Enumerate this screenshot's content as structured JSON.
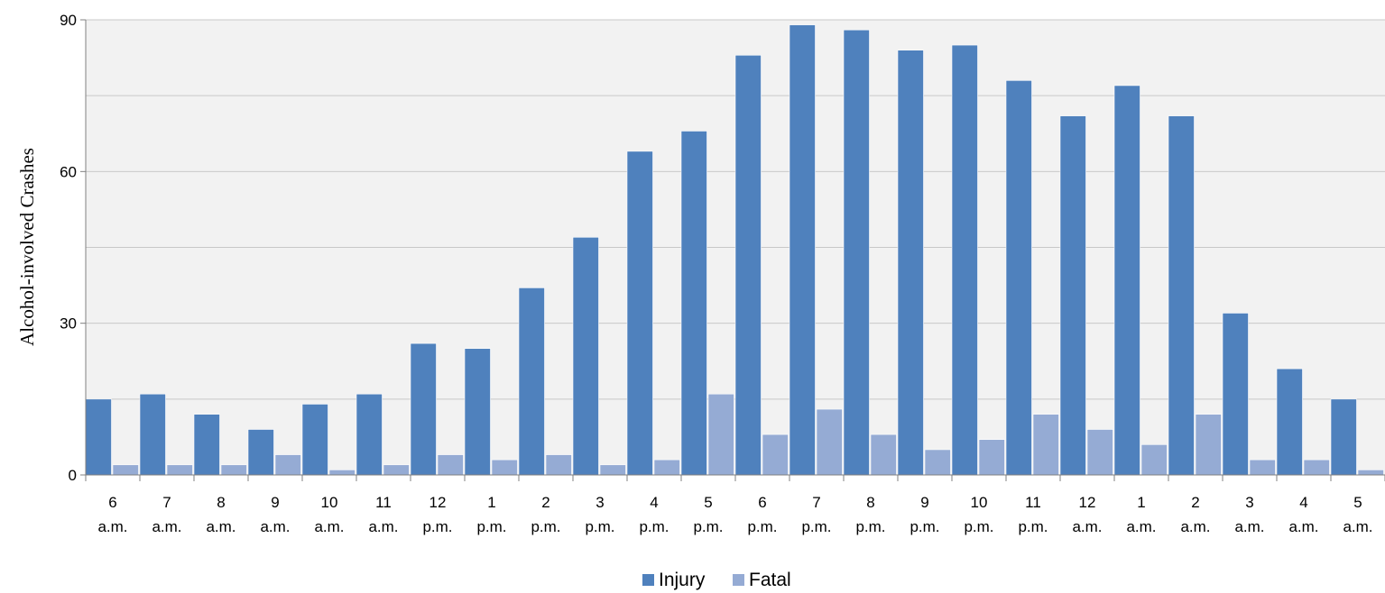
{
  "chart_data": {
    "type": "bar",
    "title": "",
    "xlabel": "",
    "ylabel": "Alcohol-involved Crashes",
    "ylim": [
      0,
      90
    ],
    "yticks": [
      0,
      30,
      60,
      90
    ],
    "grid": true,
    "legend_position": "bottom",
    "categories": [
      {
        "hour": "6",
        "period": "a.m."
      },
      {
        "hour": "7",
        "period": "a.m."
      },
      {
        "hour": "8",
        "period": "a.m."
      },
      {
        "hour": "9",
        "period": "a.m."
      },
      {
        "hour": "10",
        "period": "a.m."
      },
      {
        "hour": "11",
        "period": "a.m."
      },
      {
        "hour": "12",
        "period": "p.m."
      },
      {
        "hour": "1",
        "period": "p.m."
      },
      {
        "hour": "2",
        "period": "p.m."
      },
      {
        "hour": "3",
        "period": "p.m."
      },
      {
        "hour": "4",
        "period": "p.m."
      },
      {
        "hour": "5",
        "period": "p.m."
      },
      {
        "hour": "6",
        "period": "p.m."
      },
      {
        "hour": "7",
        "period": "p.m."
      },
      {
        "hour": "8",
        "period": "p.m."
      },
      {
        "hour": "9",
        "period": "p.m."
      },
      {
        "hour": "10",
        "period": "p.m."
      },
      {
        "hour": "11",
        "period": "p.m."
      },
      {
        "hour": "12",
        "period": "a.m."
      },
      {
        "hour": "1",
        "period": "a.m."
      },
      {
        "hour": "2",
        "period": "a.m."
      },
      {
        "hour": "3",
        "period": "a.m."
      },
      {
        "hour": "4",
        "period": "a.m."
      },
      {
        "hour": "5",
        "period": "a.m."
      }
    ],
    "series": [
      {
        "name": "Injury",
        "color": "#4f81bd",
        "values": [
          15,
          16,
          12,
          9,
          14,
          16,
          26,
          25,
          37,
          47,
          64,
          68,
          83,
          89,
          88,
          84,
          85,
          78,
          71,
          77,
          71,
          32,
          21,
          15
        ]
      },
      {
        "name": "Fatal",
        "color": "#95abd4",
        "values": [
          2,
          2,
          2,
          4,
          1,
          2,
          4,
          3,
          4,
          2,
          3,
          16,
          8,
          13,
          8,
          5,
          7,
          12,
          9,
          6,
          12,
          3,
          3,
          1
        ]
      }
    ]
  }
}
